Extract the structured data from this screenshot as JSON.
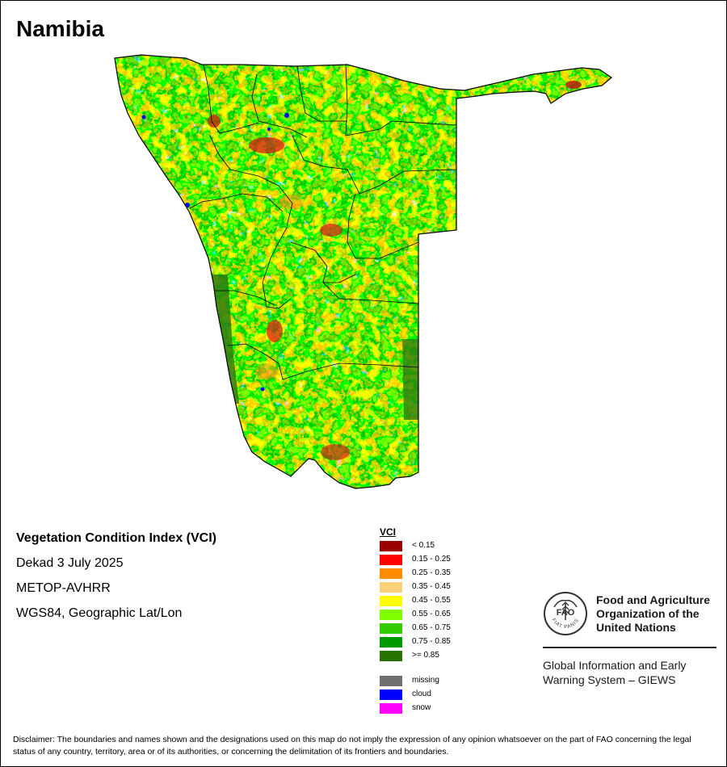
{
  "map": {
    "title": "Namibia"
  },
  "info": {
    "index_name": "Vegetation Condition Index (VCI)",
    "period": "Dekad 3 July 2025",
    "sensor": "METOP-AVHRR",
    "projection": "WGS84, Geographic Lat/Lon"
  },
  "legend": {
    "title": "VCI",
    "classes": [
      {
        "label": "< 0.15",
        "color": "#990000"
      },
      {
        "label": "0.15 - 0.25",
        "color": "#ff0000"
      },
      {
        "label": "0.25 - 0.35",
        "color": "#ff8c00"
      },
      {
        "label": "0.35 - 0.45",
        "color": "#ffd07a"
      },
      {
        "label": "0.45 - 0.55",
        "color": "#ffff00"
      },
      {
        "label": "0.55 - 0.65",
        "color": "#7fff00"
      },
      {
        "label": "0.65 - 0.75",
        "color": "#33cc00"
      },
      {
        "label": "0.75 - 0.85",
        "color": "#009900"
      },
      {
        "label": ">= 0.85",
        "color": "#267300"
      }
    ],
    "extras": [
      {
        "label": "missing",
        "color": "#707070"
      },
      {
        "label": "cloud",
        "color": "#0000ff"
      },
      {
        "label": "snow",
        "color": "#ff00ff"
      }
    ]
  },
  "organization": {
    "emblem_text": "FAO",
    "motto": "FIAT PANIS",
    "name_line1": "Food and Agriculture",
    "name_line2": "Organization of the",
    "name_line3": "United Nations",
    "system_line1": "Global Information and Early",
    "system_line2": "Warning System – GIEWS"
  },
  "disclaimer": "Disclaimer: The boundaries and names shown and the designations used on this map do not imply the expression of any opinion whatsoever on the part of FAO concerning the legal status of any country, territory, area or of its authorities, or concerning the delimitation of its frontiers and boundaries."
}
